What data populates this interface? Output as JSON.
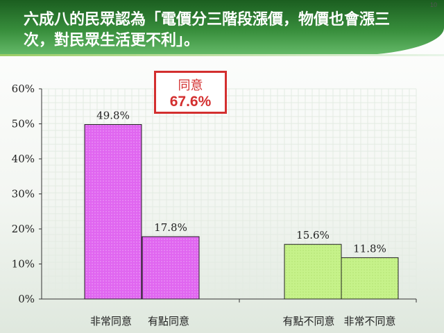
{
  "slide": {
    "number": "10",
    "title": "六成八的民眾認為「電價分三階段漲價，物價也會漲三次，對民眾生活更不利」。"
  },
  "callout": {
    "label": "同意",
    "value": "67.6%"
  },
  "colors": {
    "agree": "#e066f0",
    "disagree": "#c6f28a",
    "callout_border": "#d32f2f",
    "title_text": "#ffffff"
  },
  "chart_data": {
    "type": "bar",
    "categories": [
      "非常同意",
      "有點同意",
      "有點不同意",
      "非常不同意"
    ],
    "values": [
      49.8,
      17.8,
      15.6,
      11.8
    ],
    "data_labels": [
      "49.8%",
      "17.8%",
      "15.6%",
      "11.8%"
    ],
    "ylim": [
      0,
      60
    ],
    "yticks": [
      "0%",
      "10%",
      "20%",
      "30%",
      "40%",
      "50%",
      "60%"
    ],
    "grid": true,
    "title": "",
    "xlabel": "",
    "ylabel": ""
  }
}
